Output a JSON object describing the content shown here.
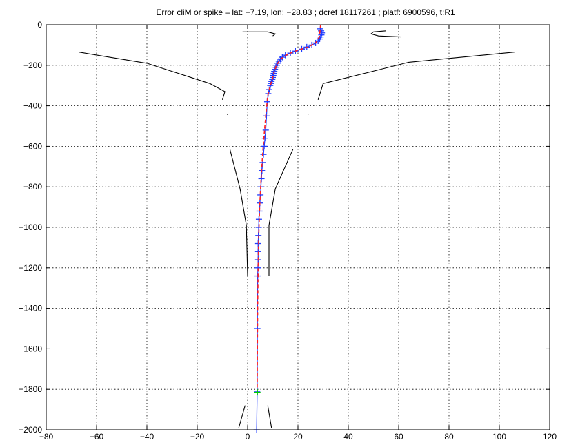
{
  "chart_data": {
    "type": "line",
    "title": "Error cliM or spike – lat: −7.19, lon: −28.83 ; dcref 18117261 ; platf: 6900596, t:R1",
    "xlim": [
      -80,
      120
    ],
    "ylim": [
      -2000,
      0
    ],
    "x_ticks": [
      -80,
      -60,
      -40,
      -20,
      0,
      20,
      40,
      60,
      80,
      100,
      120
    ],
    "y_ticks": [
      0,
      -200,
      -400,
      -600,
      -800,
      -1000,
      -1200,
      -1400,
      -1600,
      -1800,
      -2000
    ],
    "x_tick_labels": [
      "−80",
      "−60",
      "−40",
      "−20",
      "0",
      "20",
      "40",
      "60",
      "80",
      "100",
      "120"
    ],
    "y_tick_labels": [
      "0",
      "−200",
      "−400",
      "−600",
      "−800",
      "−1000",
      "−1200",
      "−1400",
      "−1600",
      "−1800",
      "−2000"
    ],
    "grid": true,
    "colors": {
      "profile": "#1f3cff",
      "fit": "#ff2020",
      "envelope": "#000000",
      "flagged": "#00cc00"
    },
    "series": [
      {
        "role": "profile",
        "marker": "+",
        "x": [
          28.9,
          29.2,
          29.5,
          29.3,
          29.0,
          28.6,
          28.0,
          27.0,
          25.5,
          23.5,
          21.5,
          19.0,
          17.0,
          15.0,
          13.8,
          13.0,
          12.4,
          11.9,
          11.5,
          11.2,
          10.9,
          10.6,
          10.4,
          10.2,
          10.0,
          9.8,
          9.5,
          9.2,
          9.0,
          8.6,
          8.2,
          7.8,
          7.5,
          7.2,
          6.9,
          6.6,
          6.3,
          6.0,
          5.7,
          5.5,
          5.3,
          5.1,
          4.9,
          4.7,
          4.5,
          4.4,
          4.3,
          4.2,
          4.2,
          4.2,
          4.1,
          4.0,
          3.9,
          3.8,
          3.6
        ],
        "y": [
          -20,
          -30,
          -40,
          -50,
          -60,
          -70,
          -80,
          -90,
          -100,
          -110,
          -120,
          -130,
          -140,
          -150,
          -160,
          -170,
          -180,
          -190,
          -200,
          -210,
          -220,
          -230,
          -240,
          -250,
          -260,
          -270,
          -280,
          -290,
          -300,
          -320,
          -340,
          -380,
          -450,
          -520,
          -560,
          -600,
          -640,
          -680,
          -720,
          -760,
          -800,
          -840,
          -880,
          -920,
          -960,
          -1000,
          -1040,
          -1080,
          -1120,
          -1160,
          -1200,
          -1240,
          -1500,
          -1810,
          -2000
        ]
      },
      {
        "role": "fit",
        "x": [
          29.0,
          28.5,
          27.0,
          24.0,
          20.0,
          16.0,
          13.0,
          11.5,
          10.5,
          9.8,
          9.0,
          8.0,
          7.2,
          6.2,
          5.4,
          4.8,
          4.4,
          4.2,
          4.0,
          3.9,
          3.8
        ],
        "y": [
          0,
          -60,
          -90,
          -110,
          -125,
          -145,
          -170,
          -200,
          -235,
          -270,
          -300,
          -350,
          -450,
          -600,
          -750,
          -900,
          -1050,
          -1200,
          -1400,
          -1600,
          -1800
        ]
      },
      {
        "role": "flagged",
        "marker": "+",
        "x": [
          3.9
        ],
        "y": [
          -1815
        ]
      },
      {
        "role": "envelope",
        "segments": [
          {
            "x": [
              -67,
              -40,
              -15,
              -9,
              -10
            ],
            "y": [
              -135,
              -190,
              -290,
              -330,
              -370
            ]
          },
          {
            "x": [
              -8,
              -8
            ],
            "y": [
              -440,
              -445
            ]
          },
          {
            "x": [
              -7,
              -3,
              -0.5,
              0
            ],
            "y": [
              -615,
              -810,
              -990,
              -1240
            ]
          },
          {
            "x": [
              -1,
              -3.5
            ],
            "y": [
              -1880,
              -1990
            ]
          },
          {
            "x": [
              106,
              64,
              48,
              30,
              28
            ],
            "y": [
              -135,
              -185,
              -235,
              -290,
              -370
            ]
          },
          {
            "x": [
              24,
              24
            ],
            "y": [
              -440,
              -445
            ]
          },
          {
            "x": [
              18,
              11,
              8.5,
              8.5
            ],
            "y": [
              -615,
              -810,
              -990,
              -1240
            ]
          },
          {
            "x": [
              8,
              9.5
            ],
            "y": [
              -1880,
              -1990
            ]
          },
          {
            "x": [
              -2,
              8,
              11,
              10
            ],
            "y": [
              -35,
              -35,
              -45,
              -55
            ]
          },
          {
            "x": [
              55,
              50,
              49,
              52,
              61
            ],
            "y": [
              -30,
              -35,
              -45,
              -55,
              -60
            ]
          }
        ]
      }
    ]
  }
}
